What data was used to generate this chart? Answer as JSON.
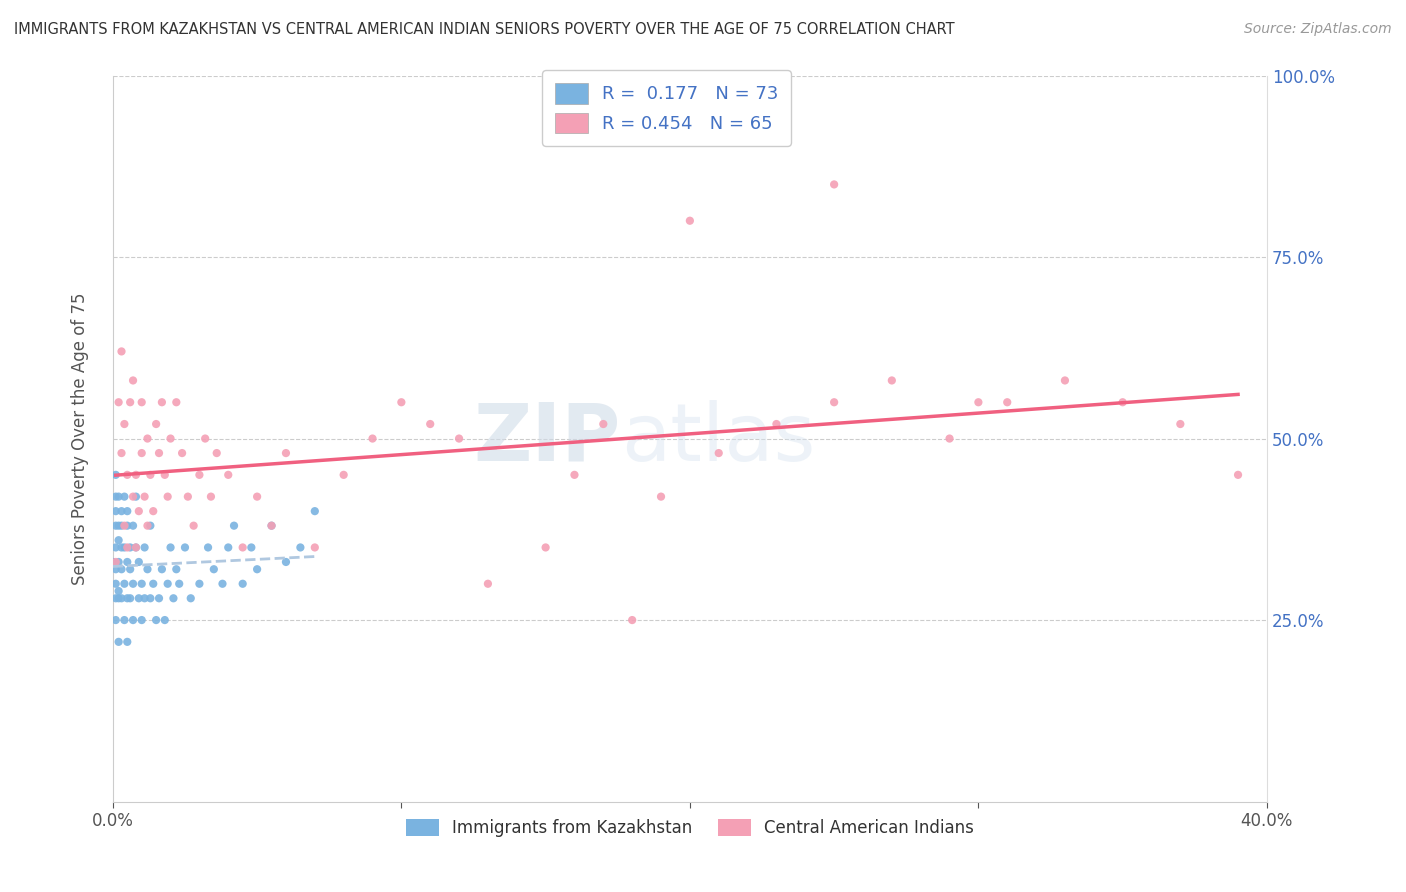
{
  "title": "IMMIGRANTS FROM KAZAKHSTAN VS CENTRAL AMERICAN INDIAN SENIORS POVERTY OVER THE AGE OF 75 CORRELATION CHART",
  "source": "Source: ZipAtlas.com",
  "ylabel": "Seniors Poverty Over the Age of 75",
  "xlim": [
    0.0,
    0.4
  ],
  "ylim": [
    0.0,
    1.0
  ],
  "legend_r1": "R =  0.177",
  "legend_n1": "N = 73",
  "legend_r2": "R = 0.454",
  "legend_n2": "N = 65",
  "series1_color": "#7ab3e0",
  "series2_color": "#f4a0b5",
  "trendline1_color": "#b0c8e0",
  "trendline2_color": "#f06080",
  "watermark_zip": "ZIP",
  "watermark_atlas": "atlas",
  "background_color": "#ffffff",
  "series1_name": "Immigrants from Kazakhstan",
  "series2_name": "Central American Indians",
  "blue_text_color": "#4472c4",
  "kazakhstan_x": [
    0.0,
    0.001,
    0.001,
    0.001,
    0.001,
    0.001,
    0.001,
    0.001,
    0.001,
    0.001,
    0.002,
    0.002,
    0.002,
    0.002,
    0.002,
    0.002,
    0.002,
    0.003,
    0.003,
    0.003,
    0.003,
    0.003,
    0.004,
    0.004,
    0.004,
    0.004,
    0.005,
    0.005,
    0.005,
    0.005,
    0.005,
    0.006,
    0.006,
    0.006,
    0.007,
    0.007,
    0.007,
    0.008,
    0.008,
    0.009,
    0.009,
    0.01,
    0.01,
    0.011,
    0.011,
    0.012,
    0.013,
    0.013,
    0.014,
    0.015,
    0.016,
    0.017,
    0.018,
    0.019,
    0.02,
    0.021,
    0.022,
    0.023,
    0.025,
    0.027,
    0.03,
    0.033,
    0.035,
    0.038,
    0.04,
    0.042,
    0.045,
    0.048,
    0.05,
    0.055,
    0.06,
    0.065,
    0.07
  ],
  "kazakhstan_y": [
    0.33,
    0.42,
    0.35,
    0.28,
    0.38,
    0.4,
    0.3,
    0.25,
    0.45,
    0.32,
    0.36,
    0.28,
    0.42,
    0.38,
    0.33,
    0.29,
    0.22,
    0.4,
    0.35,
    0.28,
    0.32,
    0.38,
    0.25,
    0.3,
    0.42,
    0.35,
    0.28,
    0.33,
    0.38,
    0.22,
    0.4,
    0.35,
    0.28,
    0.32,
    0.38,
    0.25,
    0.3,
    0.42,
    0.35,
    0.28,
    0.33,
    0.3,
    0.25,
    0.35,
    0.28,
    0.32,
    0.38,
    0.28,
    0.3,
    0.25,
    0.28,
    0.32,
    0.25,
    0.3,
    0.35,
    0.28,
    0.32,
    0.3,
    0.35,
    0.28,
    0.3,
    0.35,
    0.32,
    0.3,
    0.35,
    0.38,
    0.3,
    0.35,
    0.32,
    0.38,
    0.33,
    0.35,
    0.4
  ],
  "ca_indian_x": [
    0.001,
    0.002,
    0.003,
    0.003,
    0.004,
    0.004,
    0.005,
    0.005,
    0.006,
    0.007,
    0.007,
    0.008,
    0.008,
    0.009,
    0.01,
    0.01,
    0.011,
    0.012,
    0.012,
    0.013,
    0.014,
    0.015,
    0.016,
    0.017,
    0.018,
    0.019,
    0.02,
    0.022,
    0.024,
    0.026,
    0.028,
    0.03,
    0.032,
    0.034,
    0.036,
    0.04,
    0.045,
    0.05,
    0.055,
    0.06,
    0.07,
    0.08,
    0.09,
    0.1,
    0.11,
    0.12,
    0.13,
    0.15,
    0.17,
    0.19,
    0.21,
    0.23,
    0.25,
    0.27,
    0.29,
    0.31,
    0.33,
    0.35,
    0.37,
    0.39,
    0.25,
    0.3,
    0.2,
    0.18,
    0.16
  ],
  "ca_indian_y": [
    0.33,
    0.55,
    0.48,
    0.62,
    0.38,
    0.52,
    0.45,
    0.35,
    0.55,
    0.42,
    0.58,
    0.45,
    0.35,
    0.4,
    0.48,
    0.55,
    0.42,
    0.38,
    0.5,
    0.45,
    0.4,
    0.52,
    0.48,
    0.55,
    0.45,
    0.42,
    0.5,
    0.55,
    0.48,
    0.42,
    0.38,
    0.45,
    0.5,
    0.42,
    0.48,
    0.45,
    0.35,
    0.42,
    0.38,
    0.48,
    0.35,
    0.45,
    0.5,
    0.55,
    0.52,
    0.5,
    0.3,
    0.35,
    0.52,
    0.42,
    0.48,
    0.52,
    0.55,
    0.58,
    0.5,
    0.55,
    0.58,
    0.55,
    0.52,
    0.45,
    0.85,
    0.55,
    0.8,
    0.25,
    0.45
  ]
}
